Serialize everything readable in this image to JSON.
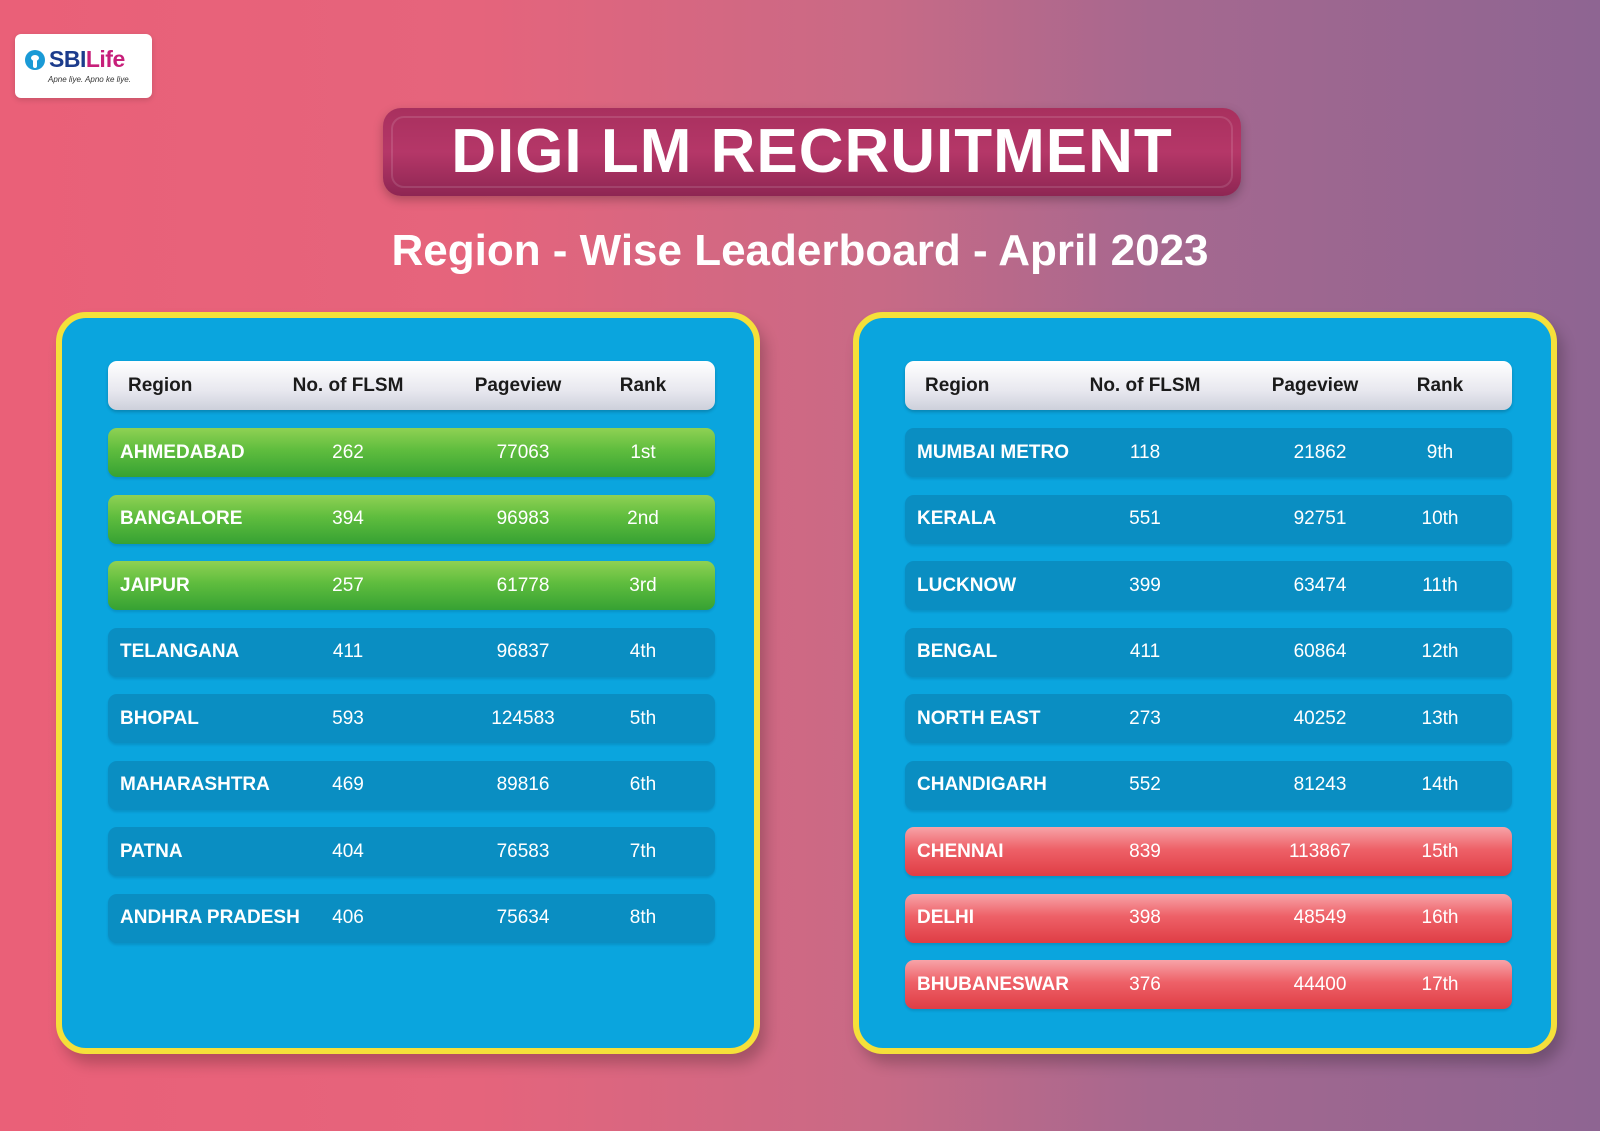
{
  "logo": {
    "brand_main": "SBI",
    "brand_sub": "Life",
    "tagline": "Apne liye. Apno ke liye."
  },
  "title": "DIGI LM RECRUITMENT",
  "subtitle": "Region - Wise Leaderboard - April 2023",
  "columns": {
    "region": "Region",
    "flsm": "No. of  FLSM",
    "pageview": "Pageview",
    "rank": "Rank"
  },
  "colors": {
    "top": "#5fbd3e",
    "normal": "#0a8ec2",
    "bottom": "#ee6168",
    "panel": "#0aa5de",
    "panel_border": "#f5e03a"
  },
  "left_table": [
    {
      "region": "AHMEDABAD",
      "flsm": "262",
      "pageview": "77063",
      "rank": "1st",
      "style": "green"
    },
    {
      "region": "BANGALORE",
      "flsm": "394",
      "pageview": "96983",
      "rank": "2nd",
      "style": "green"
    },
    {
      "region": "JAIPUR",
      "flsm": "257",
      "pageview": "61778",
      "rank": "3rd",
      "style": "green"
    },
    {
      "region": "TELANGANA",
      "flsm": "411",
      "pageview": "96837",
      "rank": "4th",
      "style": "normal"
    },
    {
      "region": "BHOPAL",
      "flsm": "593",
      "pageview": "124583",
      "rank": "5th",
      "style": "normal"
    },
    {
      "region": "MAHARASHTRA",
      "flsm": "469",
      "pageview": "89816",
      "rank": "6th",
      "style": "normal"
    },
    {
      "region": "PATNA",
      "flsm": "404",
      "pageview": "76583",
      "rank": "7th",
      "style": "normal"
    },
    {
      "region": "ANDHRA PRADESH",
      "flsm": "406",
      "pageview": "75634",
      "rank": "8th",
      "style": "normal"
    }
  ],
  "right_table": [
    {
      "region": "MUMBAI METRO",
      "flsm": "118",
      "pageview": "21862",
      "rank": "9th",
      "style": "normal"
    },
    {
      "region": "KERALA",
      "flsm": "551",
      "pageview": "92751",
      "rank": "10th",
      "style": "normal"
    },
    {
      "region": "LUCKNOW",
      "flsm": "399",
      "pageview": "63474",
      "rank": "11th",
      "style": "normal"
    },
    {
      "region": "BENGAL",
      "flsm": "411",
      "pageview": "60864",
      "rank": "12th",
      "style": "normal"
    },
    {
      "region": "NORTH EAST",
      "flsm": "273",
      "pageview": "40252",
      "rank": "13th",
      "style": "normal"
    },
    {
      "region": "CHANDIGARH",
      "flsm": "552",
      "pageview": "81243",
      "rank": "14th",
      "style": "normal"
    },
    {
      "region": "CHENNAI",
      "flsm": "839",
      "pageview": "113867",
      "rank": "15th",
      "style": "red"
    },
    {
      "region": "DELHI",
      "flsm": "398",
      "pageview": "48549",
      "rank": "16th",
      "style": "red"
    },
    {
      "region": "BHUBANESWAR",
      "flsm": "376",
      "pageview": "44400",
      "rank": "17th",
      "style": "red"
    }
  ]
}
